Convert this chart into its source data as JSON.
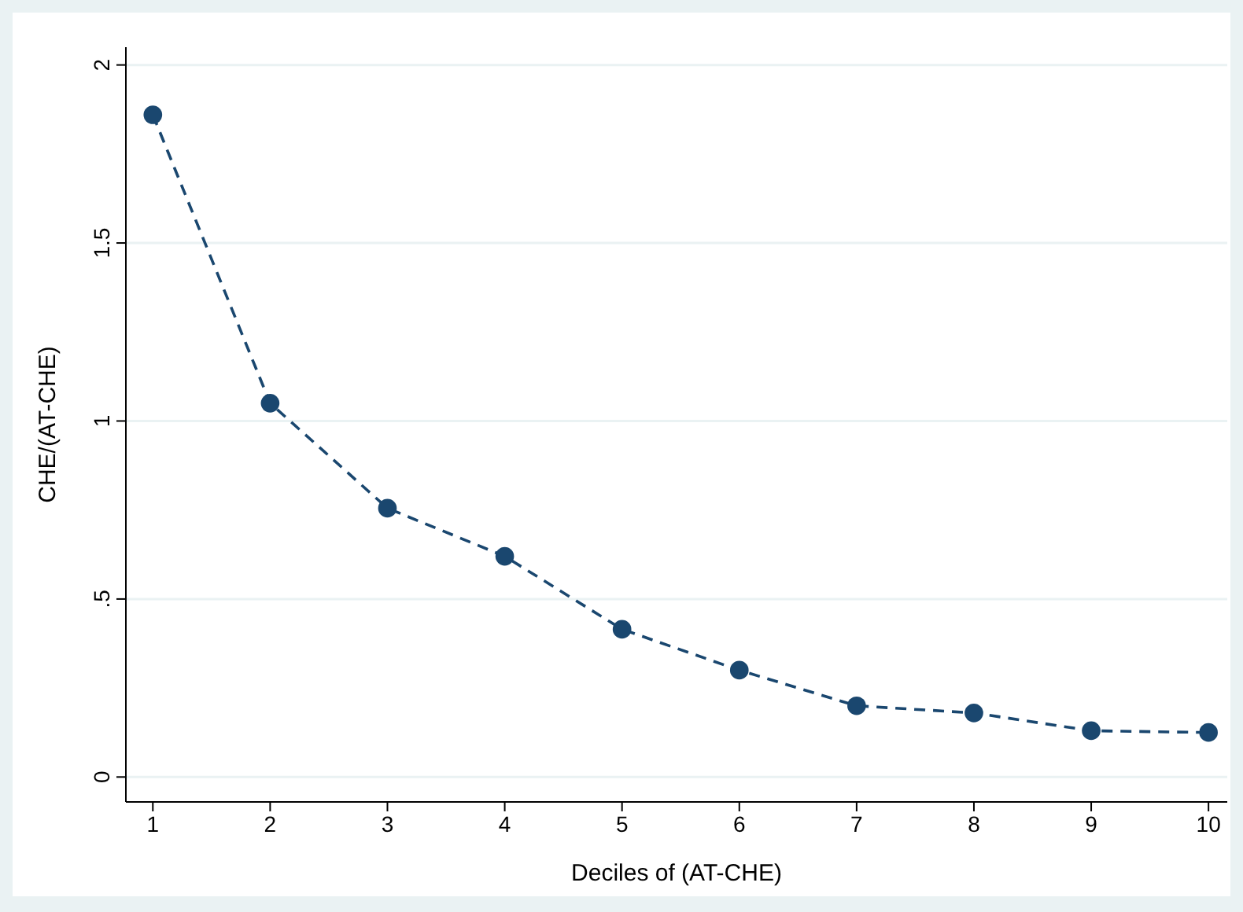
{
  "chart_data": {
    "type": "line",
    "xlabel": "Deciles of (AT-CHE)",
    "ylabel": "CHE/(AT-CHE)",
    "x": [
      1,
      2,
      3,
      4,
      5,
      6,
      7,
      8,
      9,
      10
    ],
    "series": [
      {
        "color": "#1a476f",
        "values": [
          1.86,
          1.05,
          0.755,
          0.62,
          0.415,
          0.3,
          0.2,
          0.18,
          0.13,
          0.125
        ]
      }
    ],
    "xlim": [
      0.77,
      10.16
    ],
    "xticks": [
      1,
      2,
      3,
      4,
      5,
      6,
      7,
      8,
      9,
      10
    ],
    "ylim": [
      -0.07,
      2.05
    ],
    "yticks": [
      {
        "value": 0,
        "label": "0"
      },
      {
        "value": 0.5,
        "label": ".5"
      },
      {
        "value": 1,
        "label": "1"
      },
      {
        "value": 1.5,
        "label": "1.5"
      },
      {
        "value": 2,
        "label": "2"
      }
    ],
    "grid": "y",
    "marker": "circle",
    "line_style": "dashed"
  }
}
